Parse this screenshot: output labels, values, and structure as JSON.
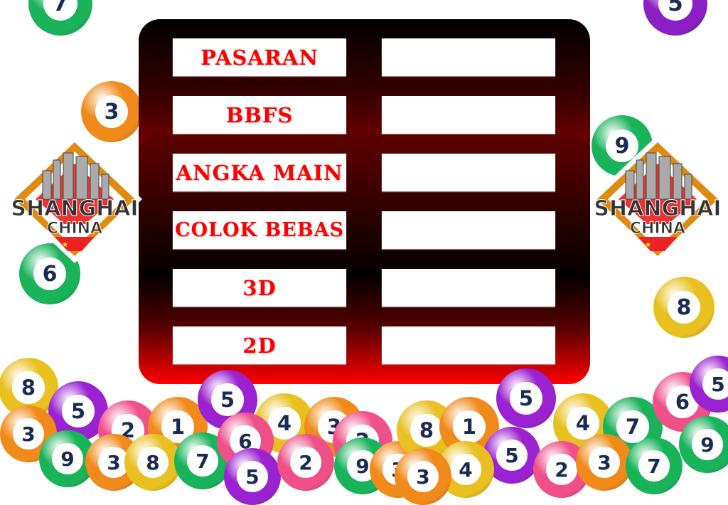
{
  "rows": [
    {
      "label": "PASARAN",
      "value": ""
    },
    {
      "label": "BBFS",
      "value": ""
    },
    {
      "label": "ANGKA MAIN",
      "value": ""
    },
    {
      "label": "COLOK BEBAS",
      "value": ""
    },
    {
      "label": "3D",
      "value": ""
    },
    {
      "label": "2D",
      "value": ""
    }
  ],
  "logo": {
    "line1": "SHANGHAI",
    "line2": "CHINA"
  },
  "colors": {
    "accent": "#ff0000",
    "panel_top": "#000000",
    "panel_bottom": "#ff0000"
  },
  "balls": [
    {
      "num": "7",
      "color": "#19b35a"
    },
    {
      "num": "5",
      "color": "#8a1fc4"
    },
    {
      "num": "3",
      "color": "#f08a1a"
    },
    {
      "num": "9",
      "color": "#19b35a"
    },
    {
      "num": "6",
      "color": "#19b35a"
    },
    {
      "num": "8",
      "color": "#e8c020"
    },
    {
      "num": "8",
      "color": "#e8c020"
    },
    {
      "num": "5",
      "color": "#9b22d0"
    },
    {
      "num": "2",
      "color": "#f0508a"
    },
    {
      "num": "1",
      "color": "#f08a1a"
    },
    {
      "num": "5",
      "color": "#9b22d0"
    },
    {
      "num": "4",
      "color": "#e8c020"
    },
    {
      "num": "3",
      "color": "#f08a1a"
    },
    {
      "num": "3",
      "color": "#f08a1a"
    },
    {
      "num": "9",
      "color": "#19b35a"
    },
    {
      "num": "3",
      "color": "#f08a1a"
    },
    {
      "num": "8",
      "color": "#e8c020"
    },
    {
      "num": "7",
      "color": "#19b35a"
    },
    {
      "num": "6",
      "color": "#f0508a"
    },
    {
      "num": "5",
      "color": "#9b22d0"
    },
    {
      "num": "2",
      "color": "#f0508a"
    },
    {
      "num": "2",
      "color": "#f0508a"
    },
    {
      "num": "9",
      "color": "#19b35a"
    },
    {
      "num": "3",
      "color": "#f08a1a"
    },
    {
      "num": "8",
      "color": "#e8c020"
    },
    {
      "num": "1",
      "color": "#f08a1a"
    },
    {
      "num": "5",
      "color": "#9b22d0"
    },
    {
      "num": "4",
      "color": "#e8c020"
    },
    {
      "num": "7",
      "color": "#19b35a"
    },
    {
      "num": "6",
      "color": "#f0508a"
    },
    {
      "num": "5",
      "color": "#9b22d0"
    },
    {
      "num": "2",
      "color": "#f0508a"
    },
    {
      "num": "3",
      "color": "#f08a1a"
    },
    {
      "num": "7",
      "color": "#19b35a"
    },
    {
      "num": "9",
      "color": "#19b35a"
    },
    {
      "num": "5",
      "color": "#9b22d0"
    },
    {
      "num": "4",
      "color": "#e8c020"
    },
    {
      "num": "3",
      "color": "#f08a1a"
    }
  ]
}
